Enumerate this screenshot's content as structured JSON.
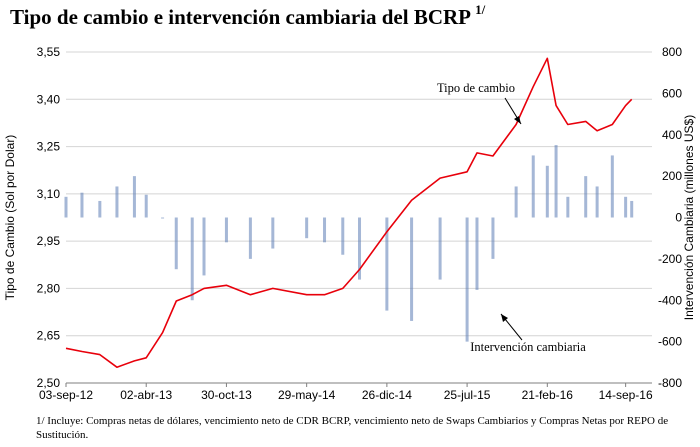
{
  "chart_data": {
    "type": "line",
    "title": "Tipo de cambio e intervención cambiaria del BCRP",
    "title_marker": "1/",
    "ylabel": "Tipo de Cambio (Sol por Dolar)",
    "y2label": "Intervención Cambiaria (millones US$)",
    "ylim": [
      2.5,
      3.55
    ],
    "y2lim": [
      -800,
      800
    ],
    "yticks": [
      "2,50",
      "2,65",
      "2,80",
      "2,95",
      "3,10",
      "3,25",
      "3,40",
      "3,55"
    ],
    "y2ticks": [
      "-800",
      "-600",
      "-400",
      "-200",
      "0",
      "200",
      "400",
      "600",
      "800"
    ],
    "xticks": [
      "03-sep-12",
      "02-abr-13",
      "30-oct-13",
      "29-may-14",
      "26-dic-14",
      "25-jul-15",
      "21-feb-16",
      "14-sep-16"
    ],
    "grid": true,
    "colors": {
      "exchange_rate": "#e8000b",
      "intervention": "#5b7bb4",
      "grid": "#d4d4d4"
    },
    "annotations": [
      {
        "text": "Tipo de cambio"
      },
      {
        "text": "Intervención cambiaria"
      }
    ],
    "series": [
      {
        "name": "Tipo de cambio",
        "axis": "left",
        "x": [
          "03-sep-12",
          "15-oct-12",
          "01-dic-12",
          "15-ene-13",
          "02-mar-13",
          "02-abr-13",
          "15-may-13",
          "20-jun-13",
          "01-ago-13",
          "01-sep-13",
          "30-oct-13",
          "01-ene-14",
          "01-mar-14",
          "29-may-14",
          "15-jul-14",
          "01-sep-14",
          "15-oct-14",
          "26-dic-14",
          "01-mar-15",
          "15-may-15",
          "25-jul-15",
          "20-ago-15",
          "01-oct-15",
          "01-dic-15",
          "15-ene-16",
          "21-feb-16",
          "15-mar-16",
          "15-abr-16",
          "01-jun-16",
          "01-jul-16",
          "10-ago-16",
          "14-sep-16",
          "30-sep-16"
        ],
        "y": [
          2.61,
          2.6,
          2.59,
          2.55,
          2.57,
          2.58,
          2.66,
          2.76,
          2.78,
          2.8,
          2.81,
          2.78,
          2.8,
          2.78,
          2.78,
          2.8,
          2.86,
          2.98,
          3.08,
          3.15,
          3.17,
          3.23,
          3.22,
          3.32,
          3.44,
          3.53,
          3.38,
          3.32,
          3.33,
          3.3,
          3.32,
          3.38,
          3.4
        ]
      },
      {
        "name": "Intervención cambiaria",
        "axis": "right",
        "type": "bar",
        "x": [
          "03-sep-12",
          "15-oct-12",
          "01-dic-12",
          "15-ene-13",
          "02-mar-13",
          "02-abr-13",
          "15-may-13",
          "20-jun-13",
          "01-ago-13",
          "01-sep-13",
          "30-oct-13",
          "01-ene-14",
          "01-mar-14",
          "29-may-14",
          "15-jul-14",
          "01-sep-14",
          "15-oct-14",
          "26-dic-14",
          "01-mar-15",
          "15-may-15",
          "25-jul-15",
          "20-ago-15",
          "01-oct-15",
          "01-dic-15",
          "15-ene-16",
          "21-feb-16",
          "15-mar-16",
          "15-abr-16",
          "01-jun-16",
          "01-jul-16",
          "10-ago-16",
          "14-sep-16",
          "30-sep-16"
        ],
        "y": [
          100,
          120,
          80,
          150,
          200,
          110,
          0,
          -250,
          -400,
          -280,
          -120,
          -200,
          -150,
          -100,
          -120,
          -180,
          -300,
          -450,
          -500,
          -300,
          -600,
          -350,
          -200,
          150,
          300,
          250,
          350,
          100,
          200,
          150,
          300,
          100,
          80
        ]
      }
    ]
  },
  "footnote": "1/ Incluye: Compras netas de dólares, vencimiento neto de CDR BCRP, vencimiento neto de Swaps Cambiarios y Compras Netas por REPO de Sustitución."
}
